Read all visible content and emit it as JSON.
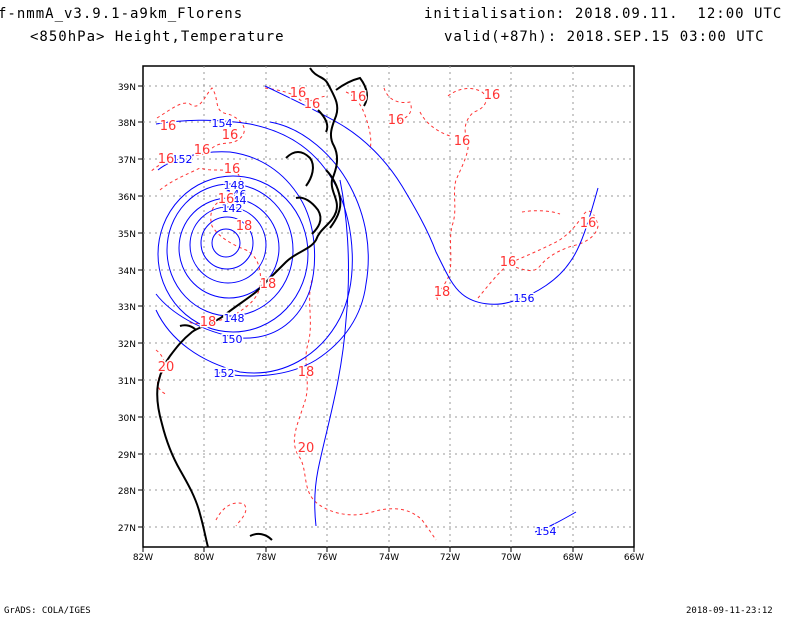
{
  "header": {
    "model": "f-nmmA_v3.9.1-a9km_Florens",
    "field": "<850hPa> Height,Temperature",
    "init": "initialisation: 2018.09.11.  12:00 UTC",
    "valid": "valid(+87h): 2018.SEP.15 03:00 UTC"
  },
  "footer": {
    "software": "GrADS: COLA/IGES",
    "timestamp": "2018-09-11-23:12"
  },
  "axes": {
    "lon_labels": [
      "82W",
      "80W",
      "78W",
      "76W",
      "74W",
      "72W",
      "70W",
      "68W",
      "66W"
    ],
    "lat_labels": [
      "27N",
      "28N",
      "29N",
      "30N",
      "31N",
      "32N",
      "33N",
      "34N",
      "35N",
      "36N",
      "37N",
      "38N",
      "39N"
    ]
  },
  "colors": {
    "height_contour": "#0000ff",
    "temperature_contour": "#ff3333",
    "coastline": "#000000"
  },
  "height_labels": [
    "154",
    "152",
    "148",
    "146",
    "144",
    "142",
    "148",
    "150",
    "152",
    "156",
    "154"
  ],
  "temp_labels": [
    "16",
    "16",
    "16",
    "16",
    "16",
    "16",
    "16",
    "16",
    "16",
    "16",
    "16",
    "16",
    "16",
    "16",
    "18",
    "18",
    "18",
    "18",
    "18",
    "20",
    "20"
  ]
}
